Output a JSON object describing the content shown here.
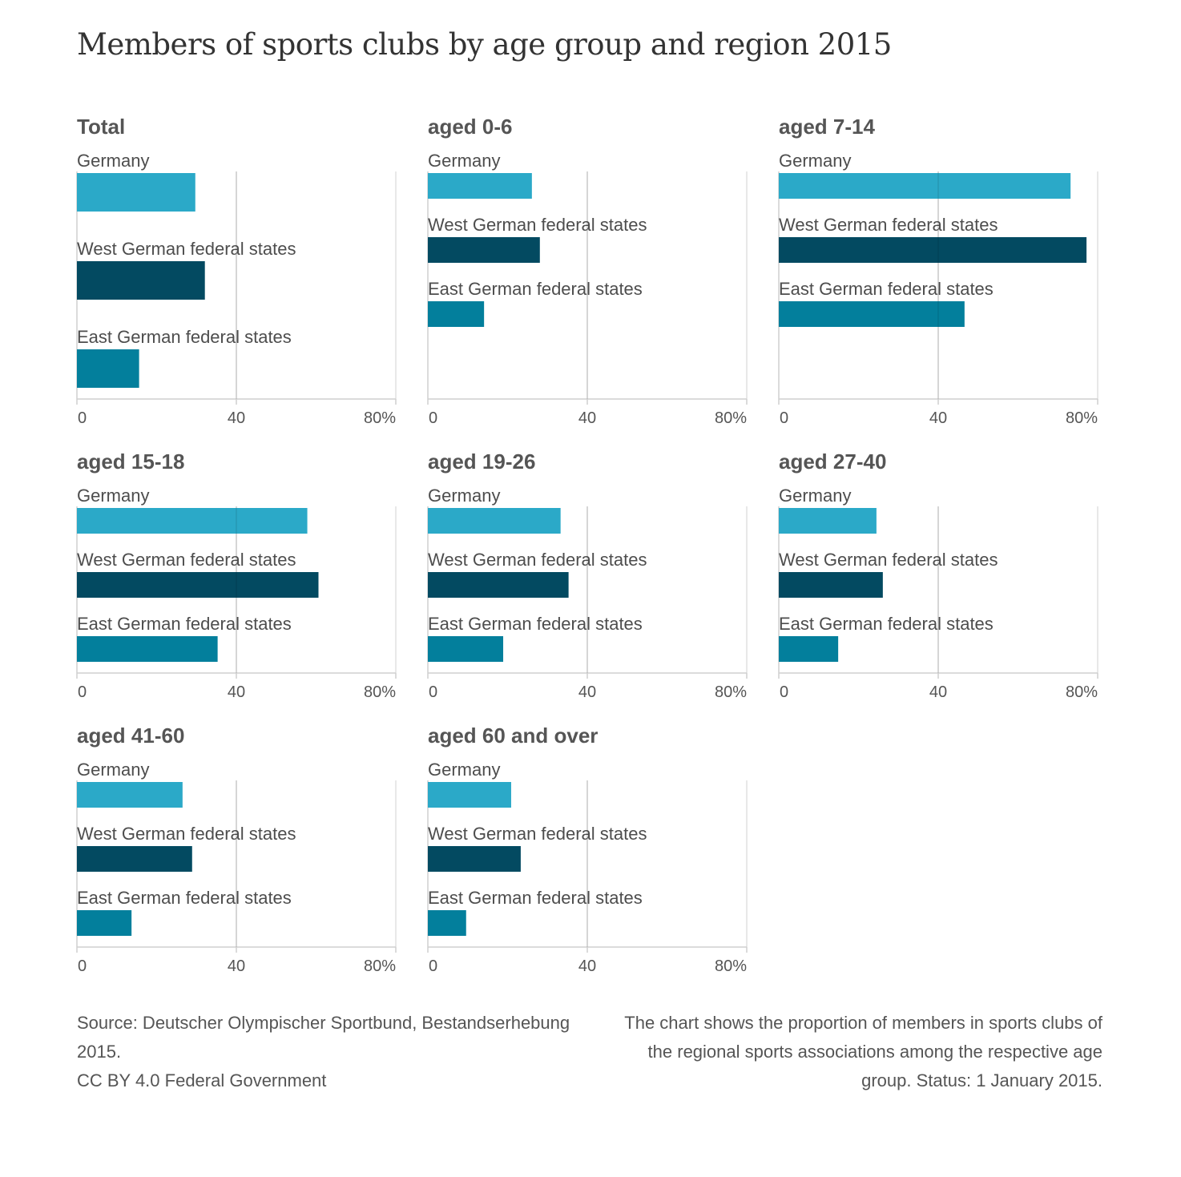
{
  "title": "Members of sports clubs by age group and region 2015",
  "colors": {
    "Germany": "#2ba9c8",
    "West German federal states": "#034a61",
    "East German federal states": "#037f9c"
  },
  "chart_data": {
    "type": "bar",
    "orientation": "horizontal",
    "xlim": [
      0,
      80
    ],
    "ticks": [
      "0",
      "40",
      "80%"
    ],
    "categories": [
      "Germany",
      "West German federal states",
      "East German federal states"
    ],
    "panels": [
      {
        "title": "Total",
        "values": [
          29.7,
          32.1,
          15.6
        ]
      },
      {
        "title": "aged 0-6",
        "values": [
          26.1,
          28.1,
          14.1
        ]
      },
      {
        "title": "aged 7-14",
        "values": [
          73.2,
          77.2,
          46.6
        ]
      },
      {
        "title": "aged 15-18",
        "values": [
          57.8,
          60.6,
          35.3
        ]
      },
      {
        "title": "aged 19-26",
        "values": [
          33.3,
          35.3,
          18.9
        ]
      },
      {
        "title": "aged 27-40",
        "values": [
          24.5,
          26.1,
          14.9
        ]
      },
      {
        "title": "aged 41-60",
        "values": [
          26.5,
          28.9,
          13.7
        ]
      },
      {
        "title": "aged 60 and over",
        "values": [
          20.9,
          23.3,
          9.6
        ]
      }
    ]
  },
  "footer": {
    "source_line1": "Source: Deutscher Olympischer Sportbund, Bestandserhebung 2015.",
    "source_line2": "CC BY 4.0 Federal Government",
    "note": "The chart shows the proportion of members in sports clubs of the regional sports associations among the respective age group. Status: 1 January 2015."
  }
}
